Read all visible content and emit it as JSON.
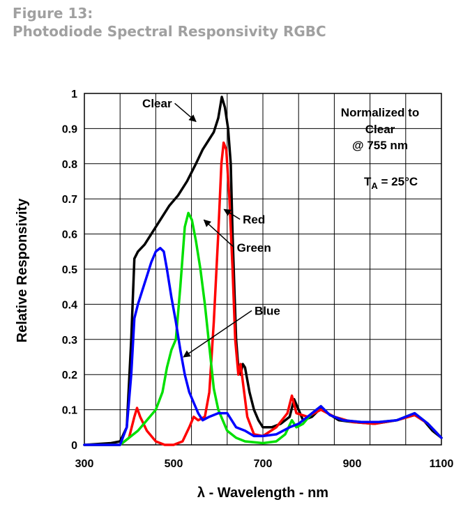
{
  "figure": {
    "number": "Figure 13:",
    "caption": "Photodiode Spectral Responsivity RGBC"
  },
  "chart_data": {
    "type": "line",
    "title": "",
    "xlabel": "λ - Wavelength - nm",
    "ylabel": "Relative Responsivity",
    "xlim": [
      300,
      1100
    ],
    "ylim": [
      0,
      1
    ],
    "xticks": [
      300,
      500,
      700,
      900,
      1100
    ],
    "yticks": [
      0,
      0.1,
      0.2,
      0.3,
      0.4,
      0.5,
      0.6,
      0.7,
      0.8,
      0.9,
      1
    ],
    "x_grid_step": 80,
    "grid": true,
    "annotations": {
      "normalized": [
        "Normalized to",
        "Clear",
        "@ 755 nm"
      ],
      "temp_main": "T",
      "temp_sub": "A",
      "temp_rest": " = 25°C"
    },
    "series": [
      {
        "name": "Clear",
        "color": "#000000",
        "label_pos": [
          463,
          0.96
        ],
        "arrow_to": [
          550,
          0.92
        ],
        "points": [
          [
            300,
            0
          ],
          [
            360,
            0.005
          ],
          [
            380,
            0.01
          ],
          [
            395,
            0.05
          ],
          [
            405,
            0.3
          ],
          [
            412,
            0.53
          ],
          [
            420,
            0.55
          ],
          [
            435,
            0.57
          ],
          [
            450,
            0.6
          ],
          [
            470,
            0.64
          ],
          [
            490,
            0.68
          ],
          [
            510,
            0.71
          ],
          [
            530,
            0.75
          ],
          [
            550,
            0.8
          ],
          [
            565,
            0.84
          ],
          [
            580,
            0.87
          ],
          [
            590,
            0.89
          ],
          [
            600,
            0.93
          ],
          [
            608,
            0.99
          ],
          [
            615,
            0.96
          ],
          [
            622,
            0.9
          ],
          [
            628,
            0.8
          ],
          [
            632,
            0.6
          ],
          [
            636,
            0.45
          ],
          [
            640,
            0.3
          ],
          [
            645,
            0.22
          ],
          [
            650,
            0.2
          ],
          [
            655,
            0.23
          ],
          [
            660,
            0.22
          ],
          [
            670,
            0.15
          ],
          [
            680,
            0.1
          ],
          [
            690,
            0.07
          ],
          [
            700,
            0.05
          ],
          [
            720,
            0.05
          ],
          [
            740,
            0.06
          ],
          [
            760,
            0.08
          ],
          [
            770,
            0.13
          ],
          [
            780,
            0.1
          ],
          [
            790,
            0.07
          ],
          [
            810,
            0.08
          ],
          [
            830,
            0.105
          ],
          [
            845,
            0.09
          ],
          [
            870,
            0.07
          ],
          [
            900,
            0.065
          ],
          [
            950,
            0.06
          ],
          [
            1000,
            0.07
          ],
          [
            1040,
            0.085
          ],
          [
            1060,
            0.07
          ],
          [
            1080,
            0.04
          ],
          [
            1100,
            0.02
          ]
        ]
      },
      {
        "name": "Red",
        "color": "#ff0000",
        "label_pos": [
          680,
          0.63
        ],
        "arrow_to": [
          613,
          0.67
        ],
        "points": [
          [
            300,
            0
          ],
          [
            380,
            0
          ],
          [
            400,
            0.02
          ],
          [
            412,
            0.08
          ],
          [
            418,
            0.105
          ],
          [
            425,
            0.08
          ],
          [
            440,
            0.04
          ],
          [
            460,
            0.01
          ],
          [
            480,
            0
          ],
          [
            500,
            0
          ],
          [
            520,
            0.01
          ],
          [
            535,
            0.05
          ],
          [
            545,
            0.08
          ],
          [
            555,
            0.07
          ],
          [
            570,
            0.08
          ],
          [
            580,
            0.15
          ],
          [
            590,
            0.35
          ],
          [
            600,
            0.6
          ],
          [
            607,
            0.8
          ],
          [
            612,
            0.86
          ],
          [
            618,
            0.84
          ],
          [
            625,
            0.7
          ],
          [
            632,
            0.5
          ],
          [
            638,
            0.3
          ],
          [
            645,
            0.2
          ],
          [
            650,
            0.23
          ],
          [
            655,
            0.18
          ],
          [
            665,
            0.08
          ],
          [
            680,
            0.03
          ],
          [
            700,
            0.025
          ],
          [
            730,
            0.05
          ],
          [
            755,
            0.09
          ],
          [
            765,
            0.14
          ],
          [
            775,
            0.09
          ],
          [
            800,
            0.08
          ],
          [
            830,
            0.1
          ],
          [
            860,
            0.08
          ],
          [
            900,
            0.065
          ],
          [
            950,
            0.06
          ],
          [
            1000,
            0.07
          ],
          [
            1040,
            0.085
          ],
          [
            1070,
            0.06
          ],
          [
            1100,
            0.02
          ]
        ]
      },
      {
        "name": "Green",
        "color": "#00e000",
        "label_pos": [
          680,
          0.55
        ],
        "arrow_to": [
          568,
          0.64
        ],
        "points": [
          [
            300,
            0
          ],
          [
            380,
            0
          ],
          [
            400,
            0.02
          ],
          [
            420,
            0.04
          ],
          [
            440,
            0.07
          ],
          [
            460,
            0.1
          ],
          [
            475,
            0.15
          ],
          [
            485,
            0.22
          ],
          [
            495,
            0.27
          ],
          [
            505,
            0.3
          ],
          [
            515,
            0.45
          ],
          [
            525,
            0.62
          ],
          [
            533,
            0.66
          ],
          [
            541,
            0.64
          ],
          [
            550,
            0.58
          ],
          [
            560,
            0.5
          ],
          [
            570,
            0.4
          ],
          [
            580,
            0.28
          ],
          [
            590,
            0.16
          ],
          [
            600,
            0.1
          ],
          [
            610,
            0.07
          ],
          [
            620,
            0.04
          ],
          [
            640,
            0.02
          ],
          [
            660,
            0.01
          ],
          [
            700,
            0.005
          ],
          [
            730,
            0.01
          ],
          [
            750,
            0.03
          ],
          [
            765,
            0.07
          ],
          [
            775,
            0.05
          ],
          [
            790,
            0.06
          ],
          [
            810,
            0.09
          ],
          [
            830,
            0.11
          ],
          [
            850,
            0.085
          ],
          [
            880,
            0.07
          ],
          [
            920,
            0.065
          ],
          [
            960,
            0.065
          ],
          [
            1000,
            0.07
          ],
          [
            1040,
            0.09
          ],
          [
            1070,
            0.06
          ],
          [
            1100,
            0.02
          ]
        ]
      },
      {
        "name": "Blue",
        "color": "#0000ff",
        "label_pos": [
          710,
          0.37
        ],
        "arrow_to": [
          522,
          0.25
        ],
        "points": [
          [
            300,
            0
          ],
          [
            380,
            0
          ],
          [
            395,
            0.05
          ],
          [
            405,
            0.2
          ],
          [
            412,
            0.36
          ],
          [
            420,
            0.4
          ],
          [
            430,
            0.44
          ],
          [
            440,
            0.48
          ],
          [
            450,
            0.52
          ],
          [
            460,
            0.55
          ],
          [
            470,
            0.56
          ],
          [
            478,
            0.55
          ],
          [
            485,
            0.5
          ],
          [
            495,
            0.42
          ],
          [
            505,
            0.35
          ],
          [
            515,
            0.27
          ],
          [
            525,
            0.2
          ],
          [
            535,
            0.15
          ],
          [
            545,
            0.12
          ],
          [
            555,
            0.09
          ],
          [
            565,
            0.07
          ],
          [
            580,
            0.08
          ],
          [
            600,
            0.09
          ],
          [
            620,
            0.09
          ],
          [
            640,
            0.05
          ],
          [
            660,
            0.04
          ],
          [
            680,
            0.025
          ],
          [
            700,
            0.025
          ],
          [
            730,
            0.03
          ],
          [
            760,
            0.05
          ],
          [
            780,
            0.06
          ],
          [
            800,
            0.08
          ],
          [
            820,
            0.1
          ],
          [
            830,
            0.11
          ],
          [
            850,
            0.085
          ],
          [
            880,
            0.07
          ],
          [
            920,
            0.065
          ],
          [
            960,
            0.065
          ],
          [
            1000,
            0.07
          ],
          [
            1040,
            0.09
          ],
          [
            1070,
            0.06
          ],
          [
            1100,
            0.02
          ]
        ]
      }
    ]
  }
}
